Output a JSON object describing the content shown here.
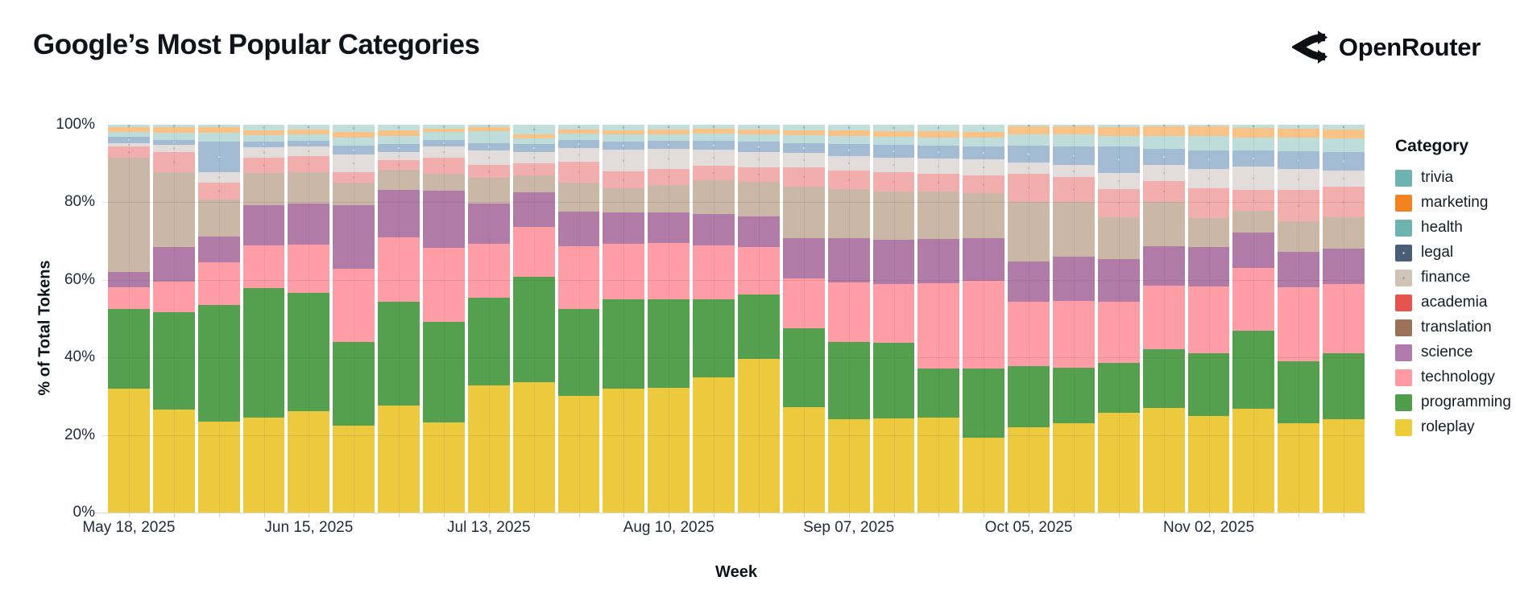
{
  "header": {
    "title": "Google’s Most Popular Categories",
    "brand": "OpenRouter"
  },
  "legend": {
    "title": "Category",
    "items": [
      {
        "label": "trivia",
        "color": "#6db3b0",
        "pattern": "none"
      },
      {
        "label": "marketing",
        "color": "#f58220",
        "pattern": "none"
      },
      {
        "label": "health",
        "color": "#6db3b0",
        "pattern": "none"
      },
      {
        "label": "legal",
        "color": "#4a5e78",
        "pattern": "dots",
        "dot_color": "#9fd4d8"
      },
      {
        "label": "finance",
        "color": "#cfc4b6",
        "pattern": "dots",
        "dot_color": "#8e96a8"
      },
      {
        "label": "academia",
        "color": "#e65450",
        "pattern": "none"
      },
      {
        "label": "translation",
        "color": "#9b7257",
        "pattern": "none"
      },
      {
        "label": "science",
        "color": "#b07aad",
        "pattern": "none"
      },
      {
        "label": "technology",
        "color": "#ff9aa2",
        "pattern": "none"
      },
      {
        "label": "programming",
        "color": "#4f9e4c",
        "pattern": "none"
      },
      {
        "label": "roleplay",
        "color": "#eccc39",
        "pattern": "none"
      }
    ]
  },
  "chart_data": {
    "type": "bar",
    "subtype": "stacked-100-percent",
    "title": "Google’s Most Popular Categories",
    "xlabel": "Week",
    "ylabel": "% of Total Tokens",
    "ylim": [
      0,
      100
    ],
    "y_tick_labels": [
      "0%",
      "20%",
      "40%",
      "60%",
      "80%",
      "100%"
    ],
    "x_tick_labels": [
      {
        "index": 0,
        "label": "May 18, 2025"
      },
      {
        "index": 4,
        "label": "Jun 15, 2025"
      },
      {
        "index": 8,
        "label": "Jul 13, 2025"
      },
      {
        "index": 12,
        "label": "Aug 10, 2025"
      },
      {
        "index": 16,
        "label": "Sep 07, 2025"
      },
      {
        "index": 20,
        "label": "Oct 05, 2025"
      },
      {
        "index": 24,
        "label": "Nov 02, 2025"
      }
    ],
    "categories": [
      "May 18, 2025",
      "May 25, 2025",
      "Jun 01, 2025",
      "Jun 08, 2025",
      "Jun 15, 2025",
      "Jun 22, 2025",
      "Jun 29, 2025",
      "Jul 06, 2025",
      "Jul 13, 2025",
      "Jul 20, 2025",
      "Jul 27, 2025",
      "Aug 03, 2025",
      "Aug 10, 2025",
      "Aug 17, 2025",
      "Aug 24, 2025",
      "Aug 31, 2025",
      "Sep 07, 2025",
      "Sep 14, 2025",
      "Sep 21, 2025",
      "Sep 28, 2025",
      "Oct 05, 2025",
      "Oct 12, 2025",
      "Oct 19, 2025",
      "Oct 26, 2025",
      "Nov 02, 2025",
      "Nov 09, 2025",
      "Nov 16, 2025",
      "Nov 23, 2025"
    ],
    "stack_order": "bottom to top",
    "series": [
      {
        "name": "roleplay",
        "bar_color": "#edc93e",
        "pattern": "none",
        "values": [
          32,
          26.5,
          23.5,
          24.4,
          26.2,
          22.5,
          27.6,
          23.4,
          32.7,
          33.4,
          30.1,
          31.9,
          32.1,
          34.9,
          39.6,
          27.3,
          24,
          24.3,
          24.5,
          19.3,
          21.9,
          23,
          25.8,
          27,
          25,
          26.7,
          23,
          24.1
        ]
      },
      {
        "name": "programming",
        "bar_color": "#55a04e",
        "pattern": "none",
        "values": [
          20.5,
          25,
          30,
          33.5,
          30.4,
          21.5,
          26.6,
          26.1,
          22.6,
          27,
          22.4,
          23,
          23,
          20,
          16.6,
          20.2,
          20,
          19.5,
          12.6,
          17.8,
          15.9,
          14.4,
          12.8,
          15.1,
          16.1,
          20.2,
          16.1,
          17
        ]
      },
      {
        "name": "technology",
        "bar_color": "#ff9da6",
        "pattern": "none",
        "values": [
          5.5,
          7.8,
          10.8,
          11,
          12.4,
          18.8,
          16.6,
          19.2,
          13.9,
          12.7,
          16.1,
          14.3,
          14.4,
          13.9,
          12.4,
          13,
          15.3,
          15.2,
          22,
          22.6,
          16.5,
          17.2,
          15.9,
          16.3,
          17.2,
          16.1,
          19.1,
          17.8
        ]
      },
      {
        "name": "science",
        "bar_color": "#b17ba8",
        "pattern": "none",
        "values": [
          4,
          9,
          6.7,
          10.4,
          10.6,
          16.5,
          12.2,
          14.8,
          10.4,
          8.9,
          9,
          8.1,
          8,
          8.2,
          7.8,
          10.4,
          11.3,
          11.5,
          11.3,
          11.1,
          10.5,
          11.3,
          11,
          10.2,
          10.1,
          9.3,
          9,
          9
        ]
      },
      {
        "name": "translation",
        "bar_color": "#cbb7a5",
        "pattern": "none",
        "values": [
          29.5,
          19.2,
          9.6,
          8.2,
          8.1,
          5.7,
          5.2,
          4.2,
          6.8,
          4.2,
          7.4,
          6.2,
          7,
          8.7,
          8.9,
          13.3,
          12.7,
          12.4,
          12.2,
          11.5,
          15.2,
          14.1,
          10.7,
          11.5,
          7.6,
          5.6,
          8,
          8.1
        ]
      },
      {
        "name": "academia",
        "bar_color": "#f2adad",
        "pattern": "dots",
        "dot_color": "#e79595",
        "values": [
          3,
          5.2,
          4.4,
          4,
          4.2,
          2.7,
          2.4,
          4.2,
          3.3,
          3.1,
          5.4,
          4.4,
          4.1,
          3.7,
          3.9,
          4.8,
          4.8,
          4.9,
          4.6,
          4.7,
          7.4,
          6.4,
          7.3,
          5.2,
          7.6,
          5.4,
          8.1,
          8
        ]
      },
      {
        "name": "finance",
        "bar_color": "#e2dcda",
        "pattern": "dots",
        "dot_color": "#bcc1cd",
        "values": [
          0.8,
          1.8,
          2.6,
          2.8,
          2.6,
          4.6,
          2.2,
          3,
          3.7,
          3,
          3.7,
          5.6,
          5.2,
          4.1,
          3.9,
          3.9,
          3.7,
          3.9,
          3.9,
          4,
          2.8,
          3.2,
          4.1,
          4.3,
          5,
          5.9,
          5.3,
          4.1
        ]
      },
      {
        "name": "legal",
        "bar_color": "#a3bcd4",
        "pattern": "dots",
        "dot_color": "#c8dcea",
        "values": [
          1.7,
          1.2,
          7.8,
          1.3,
          1.3,
          2.4,
          2,
          1.6,
          1.8,
          1.9,
          2,
          2,
          2.1,
          2.4,
          2.6,
          2.4,
          3.2,
          3.3,
          3.3,
          3.4,
          4.4,
          4.7,
          7,
          4,
          4.8,
          4.2,
          4.6,
          4.7
        ]
      },
      {
        "name": "health",
        "bar_color": "#bedcd9",
        "pattern": "none",
        "values": [
          1.2,
          2,
          2.4,
          1.8,
          1.8,
          2.1,
          2.2,
          2.1,
          3.2,
          1.5,
          1.7,
          1.9,
          1.8,
          1.8,
          1.9,
          2.1,
          2,
          2,
          2.2,
          2.2,
          3,
          3.1,
          2.6,
          3.4,
          3.7,
          3.3,
          3.4,
          3.5
        ]
      },
      {
        "name": "marketing",
        "bar_color": "#f9c287",
        "pattern": "none",
        "values": [
          1.1,
          1.5,
          1.3,
          1.2,
          1.2,
          1.3,
          1.3,
          0.9,
          1,
          1,
          1,
          1.1,
          1.2,
          1.3,
          1.3,
          1.3,
          1.5,
          1.5,
          1.6,
          1.6,
          2.1,
          2,
          2.4,
          2.4,
          2.5,
          2.4,
          2.4,
          2.4
        ]
      },
      {
        "name": "trivia",
        "bar_color": "#c2dedb",
        "pattern": "dots",
        "dot_color": "#7ab8b4",
        "values": [
          0.7,
          0.5,
          0.7,
          1.4,
          1.2,
          1.9,
          1.5,
          1,
          0.6,
          2.5,
          1.2,
          1.4,
          1.2,
          1,
          1.2,
          1.4,
          1.4,
          1.6,
          1.6,
          1.8,
          0.3,
          0.5,
          0.5,
          0.5,
          0.4,
          0.9,
          1,
          1.2
        ]
      }
    ],
    "legend_position": "right",
    "grid": true
  }
}
